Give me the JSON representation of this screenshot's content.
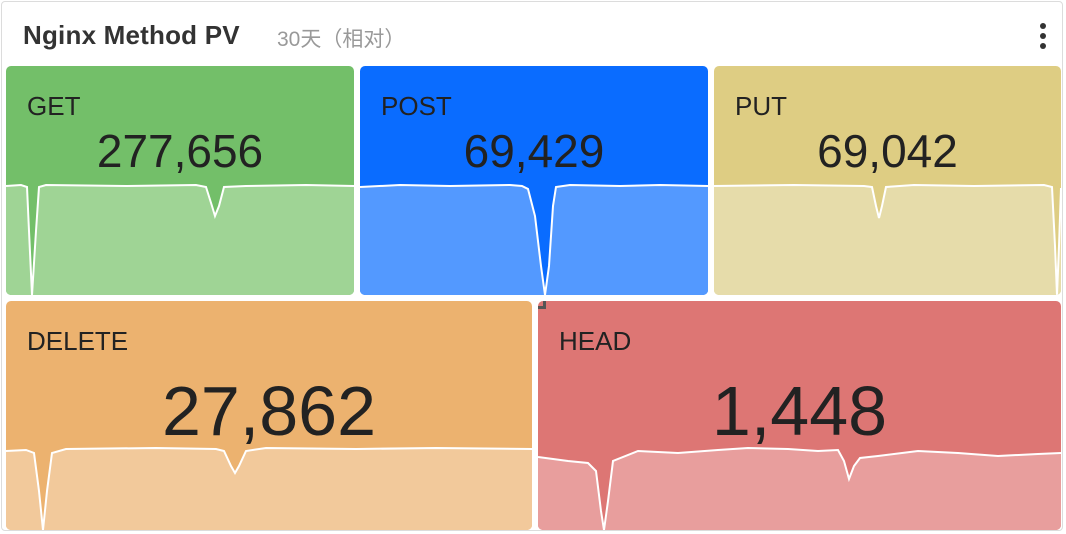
{
  "panel": {
    "title": "Nginx Method PV",
    "time_range": "30天（相对）"
  },
  "stats": [
    {
      "label": "GET",
      "value": "277,656",
      "bg": "#73bf69",
      "fill": "#9fd495"
    },
    {
      "label": "POST",
      "value": "69,429",
      "bg": "#0a6cff",
      "fill": "#5399ff"
    },
    {
      "label": "PUT",
      "value": "69,042",
      "bg": "#decd83",
      "fill": "#e6dcaa"
    },
    {
      "label": "DELETE",
      "value": "27,862",
      "bg": "#ecb26f",
      "fill": "#f2c99b"
    },
    {
      "label": "HEAD",
      "value": "1,448",
      "bg": "#dd7674",
      "fill": "#e89e9d"
    }
  ],
  "icons": {
    "menu": "more-vertical-icon",
    "resize": "resize-handle-icon"
  }
}
